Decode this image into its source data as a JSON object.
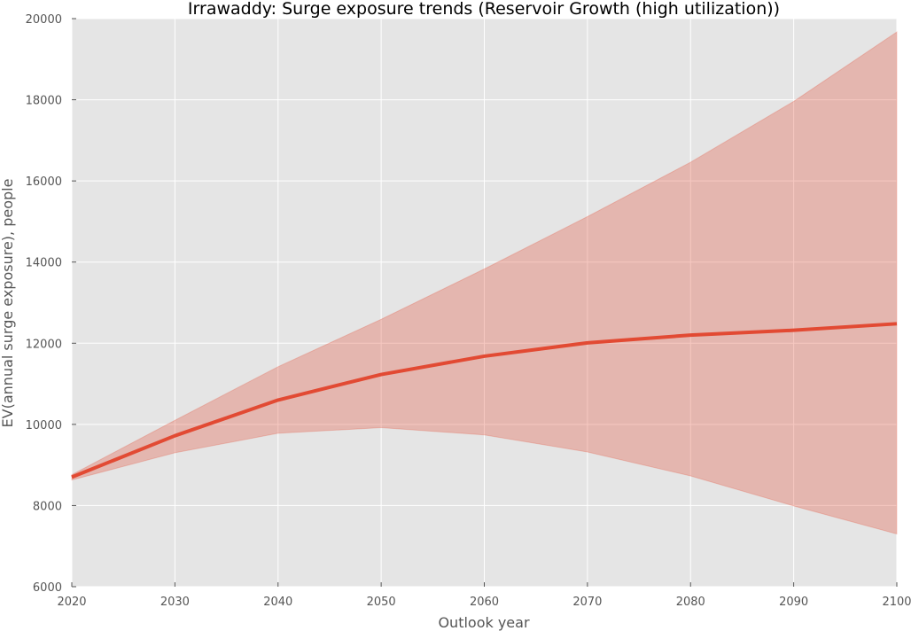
{
  "chart_data": {
    "type": "line",
    "title": "Irrawaddy: Surge exposure trends (Reservoir Growth (high utilization))",
    "xlabel": "Outlook year",
    "ylabel": "EV(annual surge exposure), people",
    "xlim": [
      2020,
      2100
    ],
    "ylim": [
      6000,
      20000
    ],
    "x_ticks": [
      2020,
      2030,
      2040,
      2050,
      2060,
      2070,
      2080,
      2090,
      2100
    ],
    "y_ticks": [
      6000,
      8000,
      10000,
      12000,
      14000,
      16000,
      18000,
      20000
    ],
    "grid": true,
    "x": [
      2020,
      2030,
      2040,
      2050,
      2060,
      2070,
      2080,
      2090,
      2100
    ],
    "series": [
      {
        "values": [
          8700,
          9720,
          10600,
          11230,
          11680,
          12010,
          12200,
          12320,
          12480
        ],
        "band_upper": [
          8760,
          10100,
          11420,
          12590,
          13830,
          15120,
          16460,
          17960,
          19670
        ],
        "band_lower": [
          8630,
          9300,
          9780,
          9920,
          9740,
          9320,
          8730,
          7990,
          7300
        ],
        "color": "#e24a33",
        "band_color": "#e24a33"
      }
    ],
    "colors": {
      "plot_background": "#e5e5e5",
      "grid": "#ffffff",
      "line": "#e24a33",
      "band": "#e24a33"
    }
  }
}
